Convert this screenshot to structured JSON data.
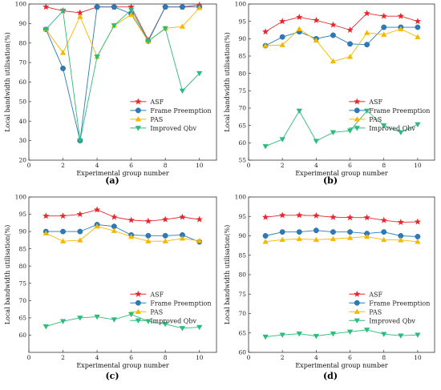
{
  "chart_data": [
    {
      "type": "line",
      "panel": "(a)",
      "xlabel": "Experimental group number",
      "ylabel": "Local bandwidth utilisation(%)",
      "x": [
        1,
        2,
        3,
        4,
        5,
        6,
        7,
        8,
        9,
        10
      ],
      "xlim": [
        0,
        11
      ],
      "xticks": [
        0,
        2,
        4,
        6,
        8,
        10
      ],
      "ylim": [
        20,
        100
      ],
      "yticks": [
        20,
        30,
        40,
        50,
        60,
        70,
        80,
        90,
        100
      ],
      "legend_position": "center-right",
      "series": [
        {
          "name": "ASF",
          "marker": "star",
          "color": "#e8252b",
          "values": [
            98.5,
            96.5,
            95.5,
            98.5,
            98.5,
            98.5,
            81.5,
            98.5,
            98.5,
            99.5
          ]
        },
        {
          "name": "Frame Preemption",
          "marker": "circle",
          "color": "#2a7bb8",
          "values": [
            87,
            67,
            30,
            98.5,
            98.5,
            95,
            81,
            98.5,
            98.5,
            98.5
          ]
        },
        {
          "name": "PAS",
          "marker": "triangle-up",
          "color": "#f5b800",
          "values": [
            87,
            75,
            93.5,
            73,
            89,
            94.5,
            81,
            87.5,
            88.5,
            98
          ]
        },
        {
          "name": "Improved Qbv",
          "marker": "triangle-down",
          "color": "#2bbb7a",
          "values": [
            87,
            96.5,
            30,
            73,
            89,
            97,
            81,
            87.5,
            55.5,
            64.5
          ]
        }
      ]
    },
    {
      "type": "line",
      "panel": "(b)",
      "xlabel": "Experimental group number",
      "ylabel": "Local bandwidth utilisation(%)",
      "x": [
        1,
        2,
        3,
        4,
        5,
        6,
        7,
        8,
        9,
        10
      ],
      "xlim": [
        0,
        11
      ],
      "xticks": [
        0,
        2,
        4,
        6,
        8,
        10
      ],
      "ylim": [
        55,
        100
      ],
      "yticks": [
        55,
        60,
        65,
        70,
        75,
        80,
        85,
        90,
        95,
        100
      ],
      "legend_position": "center-right",
      "series": [
        {
          "name": "ASF",
          "marker": "star",
          "color": "#e8252b",
          "values": [
            92,
            95,
            96.2,
            95.3,
            94,
            92.5,
            97.3,
            96.5,
            96.5,
            95
          ]
        },
        {
          "name": "Frame Preemption",
          "marker": "circle",
          "color": "#2a7bb8",
          "values": [
            88,
            90.5,
            92,
            90,
            91,
            88.5,
            88.3,
            93.3,
            93.3,
            93.3
          ]
        },
        {
          "name": "PAS",
          "marker": "triangle-up",
          "color": "#f5b800",
          "values": [
            88,
            88.2,
            92.8,
            89.5,
            83.5,
            84.8,
            91.7,
            91.2,
            92.8,
            90.5
          ]
        },
        {
          "name": "Improved Qbv",
          "marker": "triangle-down",
          "color": "#2bbb7a",
          "values": [
            59,
            61,
            69.2,
            60.5,
            63,
            63.5,
            69.2,
            65,
            63,
            65.3
          ]
        }
      ]
    },
    {
      "type": "line",
      "panel": "(c)",
      "xlabel": "Experimental group number",
      "ylabel": "Local bandwidth utilisation(%)",
      "x": [
        1,
        2,
        3,
        4,
        5,
        6,
        7,
        8,
        9,
        10
      ],
      "xlim": [
        0,
        11
      ],
      "xticks": [
        0,
        2,
        4,
        6,
        8,
        10
      ],
      "ylim": [
        55,
        100
      ],
      "yticks": [
        60,
        65,
        70,
        75,
        80,
        85,
        90,
        95,
        100
      ],
      "legend_position": "center-right",
      "series": [
        {
          "name": "ASF",
          "marker": "star",
          "color": "#e8252b",
          "values": [
            94.5,
            94.5,
            95,
            96.3,
            94.2,
            93.3,
            93,
            93.5,
            94.2,
            93.5
          ]
        },
        {
          "name": "Frame Preemption",
          "marker": "circle",
          "color": "#2a7bb8",
          "values": [
            90,
            90,
            90,
            92,
            91.5,
            89,
            88.8,
            88.8,
            89,
            87
          ]
        },
        {
          "name": "PAS",
          "marker": "triangle-up",
          "color": "#f5b800",
          "values": [
            89.5,
            87.2,
            87.5,
            91.5,
            90.2,
            88.5,
            87.2,
            87.2,
            88,
            87.3
          ]
        },
        {
          "name": "Improved Qbv",
          "marker": "triangle-down",
          "color": "#2bbb7a",
          "values": [
            62.5,
            64,
            65,
            65.3,
            64.5,
            66,
            64,
            63.2,
            62,
            62.3
          ]
        }
      ]
    },
    {
      "type": "line",
      "panel": "(d)",
      "xlabel": "Experimental group number",
      "ylabel": "Local bandwidth utilisation(%)",
      "x": [
        1,
        2,
        3,
        4,
        5,
        6,
        7,
        8,
        9,
        10
      ],
      "xlim": [
        0,
        11
      ],
      "xticks": [
        0,
        2,
        4,
        6,
        8,
        10
      ],
      "ylim": [
        60,
        100
      ],
      "yticks": [
        60,
        65,
        70,
        75,
        80,
        85,
        90,
        95,
        100
      ],
      "legend_position": "center-right",
      "series": [
        {
          "name": "ASF",
          "marker": "star",
          "color": "#e8252b",
          "values": [
            94.8,
            95.3,
            95.3,
            95.2,
            94.8,
            94.7,
            94.7,
            94,
            93.5,
            93.6
          ]
        },
        {
          "name": "Frame Preemption",
          "marker": "circle",
          "color": "#2a7bb8",
          "values": [
            90,
            91,
            91,
            91.4,
            91,
            91,
            90.6,
            91,
            90,
            89.8
          ]
        },
        {
          "name": "PAS",
          "marker": "triangle-up",
          "color": "#f5b800",
          "values": [
            88.5,
            89,
            89.2,
            89,
            89.2,
            89.5,
            89.8,
            89,
            88.9,
            88.5
          ]
        },
        {
          "name": "Improved Qbv",
          "marker": "triangle-down",
          "color": "#2bbb7a",
          "values": [
            64,
            64.5,
            64.8,
            64.2,
            64.8,
            65.3,
            65.8,
            64.7,
            64.3,
            64.5
          ]
        }
      ]
    }
  ]
}
